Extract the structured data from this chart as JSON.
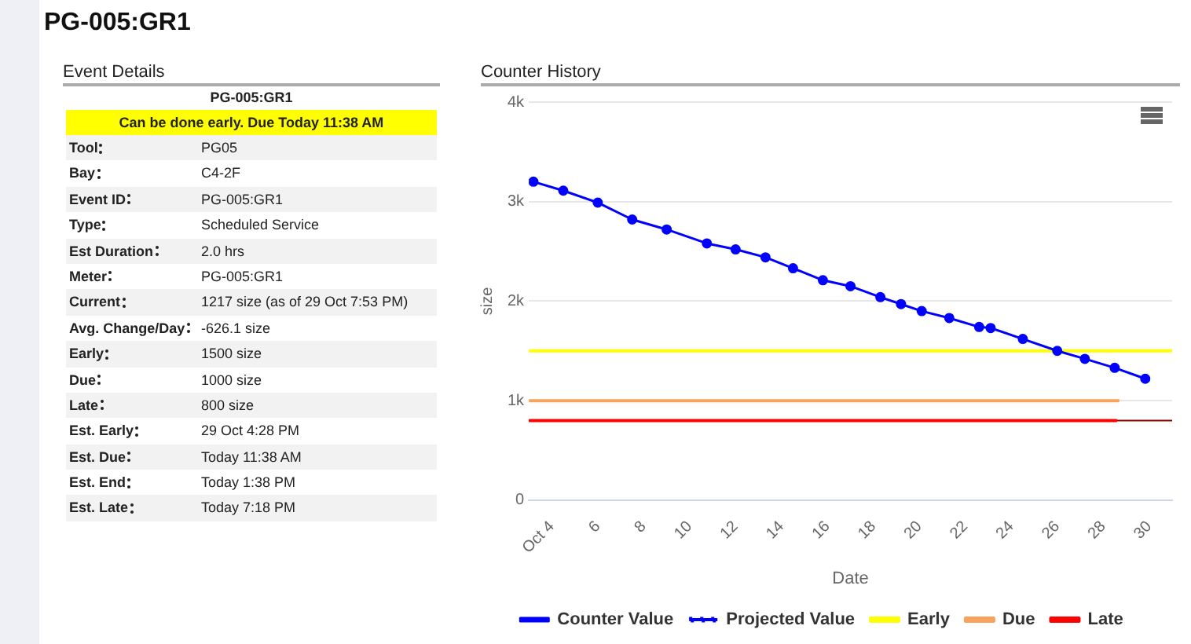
{
  "chart_data": [
    {
      "type": "other",
      "title": "PG-005:GR1",
      "subtitle": "Event Details",
      "categories": [
        null,
        null,
        "Tool",
        "Bay",
        "Event ID",
        "Type",
        "Est Duration",
        "Meter",
        "Current",
        "Avg. Change/Day",
        "Early",
        "Due",
        "Late",
        "Est. Early",
        "Est. Due",
        "Est. End",
        "Est. Late"
      ],
      "annotations": [
        "PG-005:GR1",
        "Can be done early. Due Today 11:38 AM",
        "PG05",
        "C4-2F",
        "PG-005:GR1",
        "Scheduled Service",
        "2.0 hrs",
        "PG-005:GR1",
        "1217 size (as of 29 Oct 7:53 PM)",
        "-626.1 size",
        "1500 size",
        "1000 size",
        "800 size",
        "29 Oct 4:28 PM",
        "Today 11:38 AM",
        "Today 1:38 PM",
        "Today 7:18 PM"
      ]
    },
    {
      "type": "line",
      "title": "Counter History",
      "xlabel": "Date",
      "ylabel": "size",
      "series": [
        {
          "name": "Counter Value",
          "color": "#0000ff",
          "marker": "circle",
          "x": [
            3.2,
            4.5,
            6,
            7.5,
            9,
            10.75,
            12,
            13.3,
            14.5,
            15.8,
            17,
            18.3,
            19.2,
            20.1,
            21.3,
            22.6,
            23.1,
            24.5,
            26,
            27.2,
            28.5,
            29.83
          ],
          "values": [
            3200,
            3110,
            2990,
            2820,
            2720,
            2580,
            2520,
            2440,
            2330,
            2210,
            2150,
            2040,
            1970,
            1900,
            1830,
            1740,
            1730,
            1620,
            1500,
            1420,
            1330,
            1220
          ]
        },
        {
          "name": "Projected Value",
          "color": "#0000ff",
          "line_style": "dotted",
          "marker": "circle"
        },
        {
          "name": "Early",
          "color": "#ffff00",
          "marker": "none",
          "x": [
            3,
            31
          ],
          "values": [
            1500,
            1500
          ]
        },
        {
          "name": "Due",
          "color": "#f7a35c",
          "marker": "none",
          "x": [
            3,
            28.7
          ],
          "values": [
            1000,
            1000
          ]
        },
        {
          "name": "Late",
          "color": "#ff0000",
          "marker": "none",
          "x": [
            3,
            28.6
          ],
          "values": [
            800,
            800
          ]
        }
      ],
      "ref_lines": [
        {
          "axis": "y",
          "value": 800,
          "color": "#8b0000"
        }
      ],
      "xlim": [
        3,
        31
      ],
      "xticks": [
        {
          "value": 4,
          "label": "Oct 4"
        },
        6,
        8,
        10,
        12,
        14,
        16,
        18,
        20,
        22,
        24,
        26,
        28,
        30
      ],
      "ylim": [
        0,
        4000
      ],
      "yticks": [
        0,
        {
          "value": 1000,
          "label": "1k"
        },
        {
          "value": 2000,
          "label": "2k"
        },
        {
          "value": 3000,
          "label": "3k"
        },
        {
          "value": 4000,
          "label": "4k"
        }
      ],
      "grid": "y",
      "legend": "bottom"
    }
  ]
}
